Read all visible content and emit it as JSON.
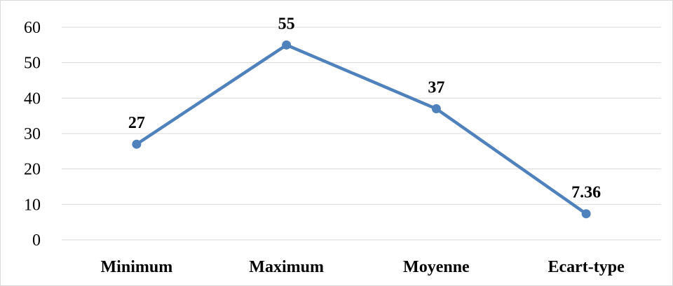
{
  "chart_data": {
    "type": "line",
    "title": "",
    "xlabel": "",
    "ylabel": "",
    "categories": [
      "Minimum",
      "Maximum",
      "Moyenne",
      "Ecart-type"
    ],
    "series": [
      {
        "values": [
          27,
          55,
          37,
          7.36
        ],
        "data_labels": [
          "27",
          "55",
          "37",
          "7.36"
        ],
        "color": "#4f81bd"
      }
    ],
    "ylim": [
      0,
      60
    ],
    "yticks": [
      0,
      10,
      20,
      30,
      40,
      50,
      60
    ],
    "grid": true,
    "legend": "none",
    "colors": {
      "line": "#4f81bd",
      "grid": "#d9d9d9",
      "axis": "#d9d9d9"
    }
  }
}
